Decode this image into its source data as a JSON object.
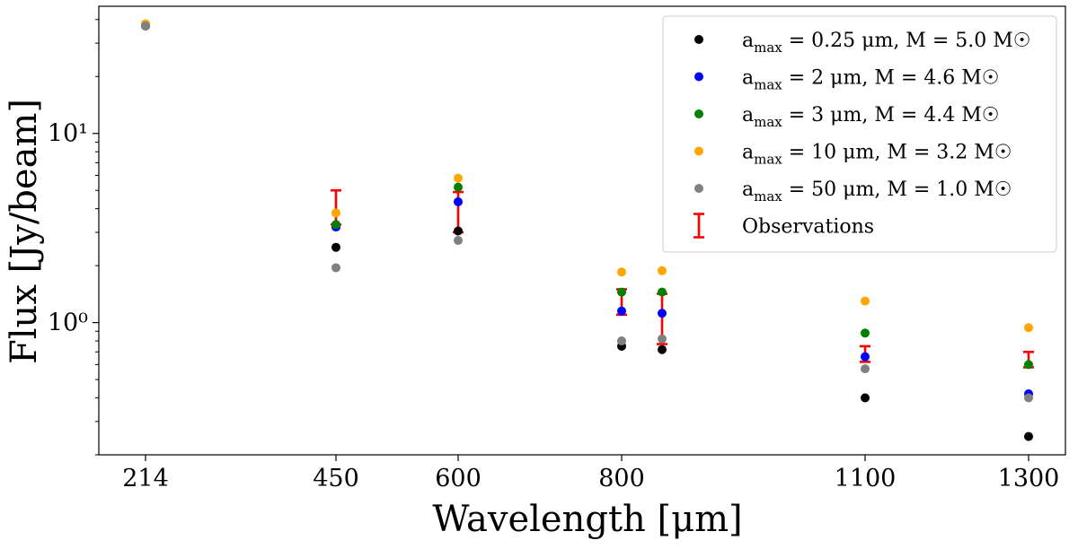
{
  "chart_data": {
    "type": "scatter",
    "xlabel": "Wavelength [μm]",
    "ylabel": "Flux [Jy/beam]",
    "yscale": "log",
    "ylim": [
      0.2,
      47
    ],
    "y_tick_labels": [
      "10⁰",
      "10¹"
    ],
    "y_tick_values": [
      1,
      10
    ],
    "categories": [
      "214",
      "450",
      "600",
      "800",
      "850",
      "1100",
      "1300"
    ],
    "x_tick_labels": [
      "214",
      "450",
      "600",
      "800",
      "1100",
      "1300"
    ],
    "legend_position": "top-right",
    "series": [
      {
        "name": "a_max = 0.25 μm, M = 5.0 M☉",
        "label_main": "a",
        "label_sub": "max",
        "label_rest": " = 0.25 μm, M = 5.0 M☉",
        "color": "#000000",
        "values": [
          37.0,
          2.5,
          3.05,
          0.75,
          0.72,
          0.4,
          0.25
        ]
      },
      {
        "name": "a_max = 2 μm, M = 4.6 M☉",
        "label_main": "a",
        "label_sub": "max",
        "label_rest": " = 2 μm, M = 4.6 M☉",
        "color": "#0000ff",
        "values": [
          37.0,
          3.2,
          4.35,
          1.15,
          1.12,
          0.66,
          0.42
        ]
      },
      {
        "name": "a_max = 3 μm, M = 4.4 M☉",
        "label_main": "a",
        "label_sub": "max",
        "label_rest": " = 3 μm, M = 4.4 M☉",
        "color": "#008000",
        "values": [
          37.5,
          3.3,
          5.2,
          1.45,
          1.45,
          0.88,
          0.6
        ]
      },
      {
        "name": "a_max = 10 μm, M = 3.2 M☉",
        "label_main": "a",
        "label_sub": "max",
        "label_rest": " = 10 μm, M = 3.2 M☉",
        "color": "#ffa500",
        "values": [
          38.0,
          3.8,
          5.8,
          1.85,
          1.88,
          1.3,
          0.94
        ]
      },
      {
        "name": "a_max = 50 μm, M = 1.0 M☉",
        "label_main": "a",
        "label_sub": "max",
        "label_rest": " = 50 μm, M = 1.0 M☉",
        "color": "#808080",
        "values": [
          37.0,
          1.95,
          2.72,
          0.8,
          0.82,
          0.57,
          0.4
        ]
      }
    ],
    "observations": {
      "name": "Observations",
      "color": "#ff0000",
      "errors": [
        {
          "x": "450",
          "low": 3.3,
          "high": 5.0
        },
        {
          "x": "600",
          "low": 3.0,
          "high": 4.9
        },
        {
          "x": "800",
          "low": 1.1,
          "high": 1.5
        },
        {
          "x": "850",
          "low": 0.77,
          "high": 1.42
        },
        {
          "x": "1100",
          "low": 0.62,
          "high": 0.75
        },
        {
          "x": "1300",
          "low": 0.58,
          "high": 0.7
        }
      ]
    }
  }
}
